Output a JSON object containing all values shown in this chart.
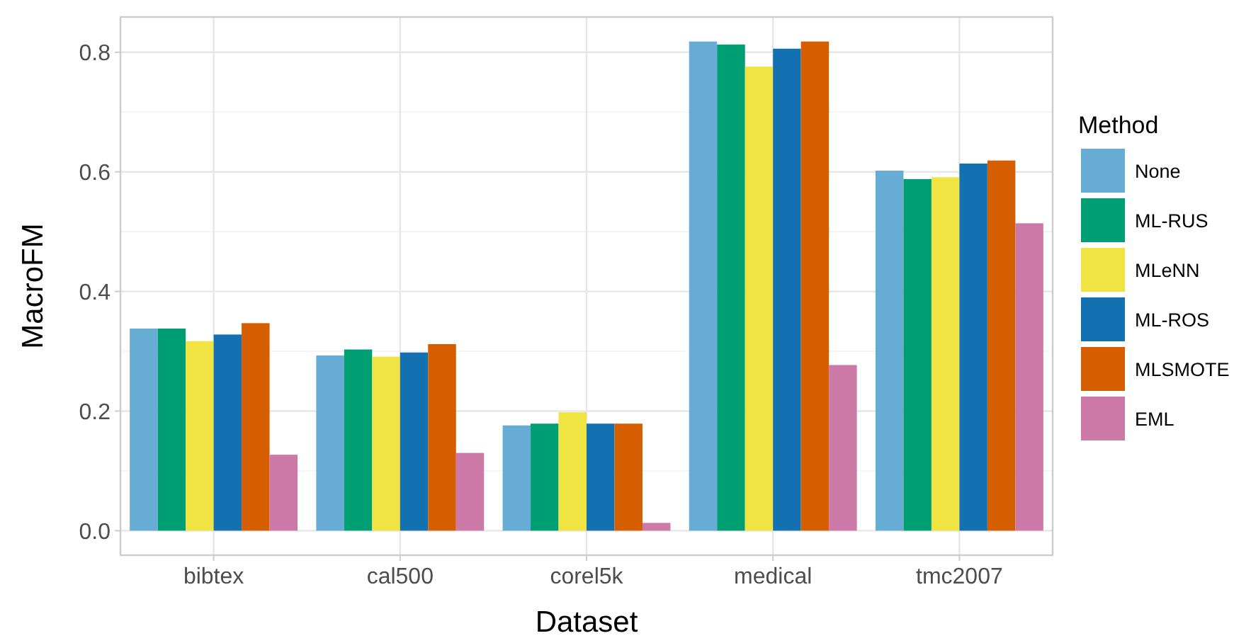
{
  "chart_data": {
    "type": "bar",
    "xlabel": "Dataset",
    "ylabel": "MacroFM",
    "legend_title": "Method",
    "categories": [
      "bibtex",
      "cal500",
      "corel5k",
      "medical",
      "tmc2007"
    ],
    "series": [
      {
        "name": "None",
        "color": "#67acd5",
        "values": [
          0.338,
          0.293,
          0.176,
          0.818,
          0.602
        ]
      },
      {
        "name": "ML-RUS",
        "color": "#009e73",
        "values": [
          0.338,
          0.303,
          0.179,
          0.813,
          0.588
        ]
      },
      {
        "name": "MLeNN",
        "color": "#f0e442",
        "values": [
          0.317,
          0.291,
          0.198,
          0.776,
          0.591
        ]
      },
      {
        "name": "ML-ROS",
        "color": "#1371b2",
        "values": [
          0.328,
          0.298,
          0.179,
          0.806,
          0.614
        ]
      },
      {
        "name": "MLSMOTE",
        "color": "#d55e00",
        "values": [
          0.347,
          0.312,
          0.179,
          0.818,
          0.619
        ]
      },
      {
        "name": "EML",
        "color": "#cc79a7",
        "values": [
          0.127,
          0.13,
          0.013,
          0.277,
          0.514
        ]
      }
    ],
    "ylim": [
      -0.041,
      0.859
    ],
    "yticks": [
      {
        "value": 0,
        "label": "0.0"
      },
      {
        "value": 0.2,
        "label": "0.2"
      },
      {
        "value": 0.4,
        "label": "0.4"
      },
      {
        "value": 0.6,
        "label": "0.6"
      },
      {
        "value": 0.8,
        "label": "0.8"
      }
    ],
    "grid": true,
    "legend": "right"
  }
}
